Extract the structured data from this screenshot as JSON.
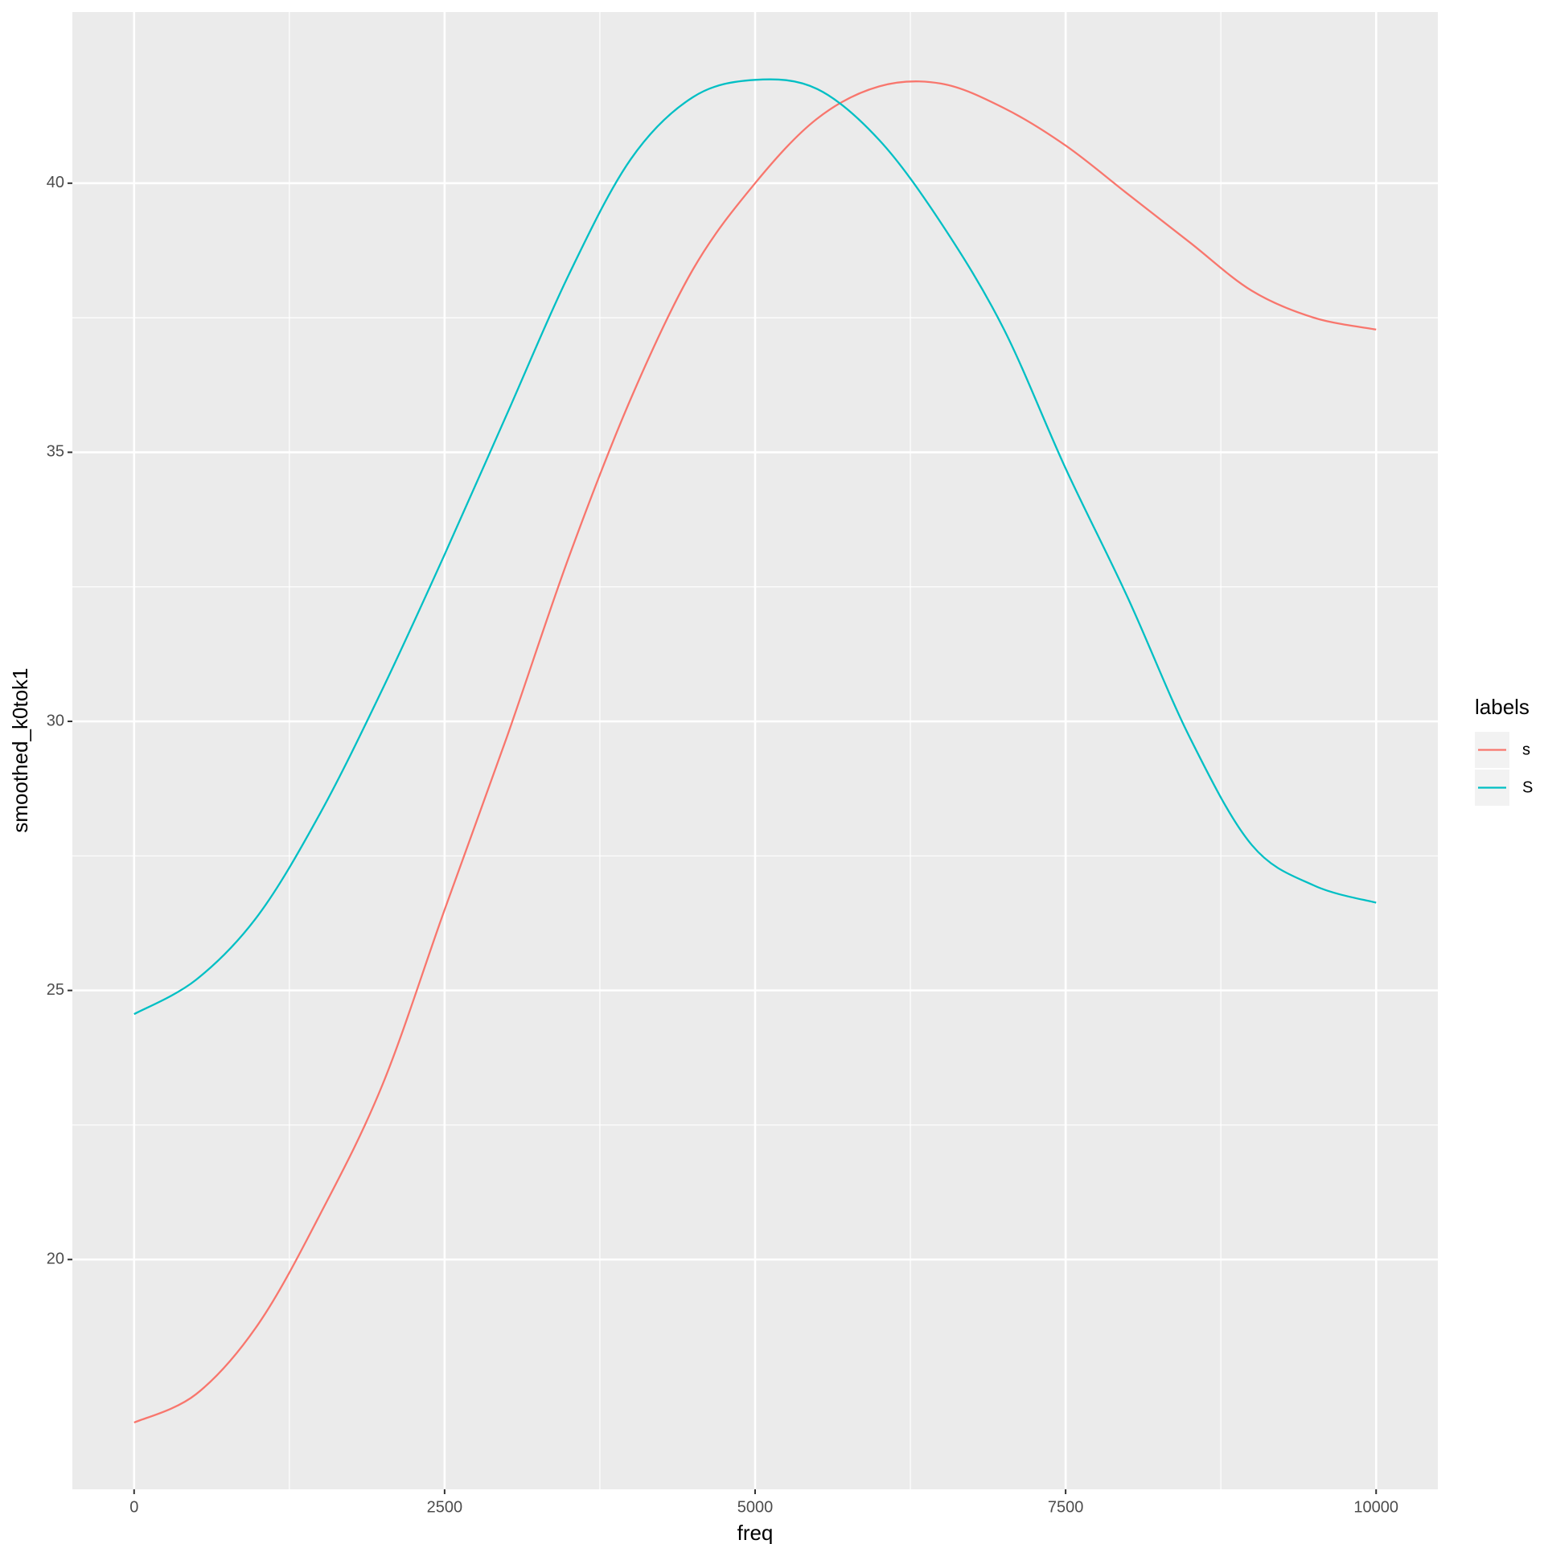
{
  "chart_data": {
    "type": "line",
    "x_label": "freq",
    "y_label": "smoothed_k0tok1",
    "legend_title": "labels",
    "legend_position": "right",
    "grid": true,
    "x": [
      0,
      500,
      1000,
      1500,
      2000,
      2500,
      3000,
      3500,
      4000,
      4500,
      5000,
      5500,
      6000,
      6500,
      7000,
      7500,
      8000,
      8500,
      9000,
      9500,
      10000
    ],
    "series": [
      {
        "name": "s",
        "color": "#f8766d",
        "values": [
          16.97,
          17.5,
          18.8,
          20.85,
          23.25,
          26.5,
          29.7,
          33.05,
          36.0,
          38.4,
          40.0,
          41.2,
          41.8,
          41.85,
          41.4,
          40.7,
          39.8,
          38.9,
          38.0,
          37.5,
          37.28
        ]
      },
      {
        "name": "S",
        "color": "#00bfc4",
        "values": [
          24.56,
          25.2,
          26.4,
          28.3,
          30.6,
          33.1,
          35.7,
          38.3,
          40.45,
          41.6,
          41.92,
          41.75,
          40.8,
          39.25,
          37.3,
          34.7,
          32.3,
          29.7,
          27.7,
          26.95,
          26.63
        ]
      }
    ],
    "xlim": [
      -497,
      10497
    ],
    "ylim": [
      15.73,
      43.18
    ],
    "xticks": [
      0,
      2500,
      5000,
      7500,
      10000
    ],
    "yticks": [
      20,
      25,
      30,
      35,
      40
    ]
  }
}
